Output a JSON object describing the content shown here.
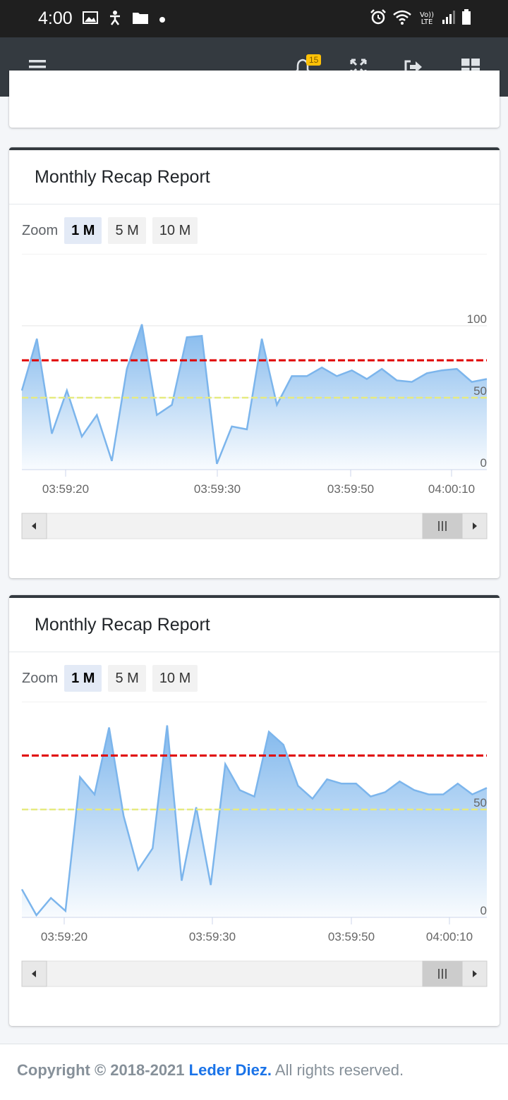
{
  "status_bar": {
    "time": "4:00",
    "lte": "Vo)) LTE"
  },
  "nav": {
    "notification_count": "15",
    "icons": [
      "hamburger-icon",
      "bell-icon",
      "fullscreen-icon",
      "logout-icon",
      "grid-icon"
    ]
  },
  "charts": [
    {
      "title": "Monthly Recap Report",
      "zoom_label": "Zoom",
      "zoom_options": [
        "1 M",
        "5 M",
        "10 M"
      ],
      "active_zoom": "1 M",
      "chart_data": {
        "type": "area",
        "x_ticks": [
          "03:59:20",
          "03:59:30",
          "03:59:50",
          "04:00:10"
        ],
        "y_ticks": [
          "100",
          "50",
          "0"
        ],
        "ylim": [
          0,
          150
        ],
        "values": [
          55,
          91,
          25,
          55,
          23,
          38,
          6,
          70,
          101,
          38,
          45,
          92,
          93,
          4,
          30,
          28,
          91,
          45,
          65,
          65,
          71,
          65,
          69,
          63,
          70,
          62,
          61,
          67,
          69,
          70,
          61,
          63
        ],
        "upper_line": 76,
        "lower_line": 50,
        "grid": true,
        "colors": {
          "area": "#7cb5ec",
          "upper_line": "#e00000",
          "lower_line": "#e6ea80"
        }
      }
    },
    {
      "title": "Monthly Recap Report",
      "zoom_label": "Zoom",
      "zoom_options": [
        "1 M",
        "5 M",
        "10 M"
      ],
      "active_zoom": "1 M",
      "chart_data": {
        "type": "area",
        "x_ticks": [
          "03:59:20",
          "03:59:30",
          "03:59:50",
          "04:00:10"
        ],
        "y_ticks": [
          "50",
          "0"
        ],
        "ylim": [
          0,
          100
        ],
        "values": [
          13,
          1,
          9,
          3,
          65,
          57,
          88,
          47,
          22,
          32,
          89,
          17,
          51,
          15,
          71,
          59,
          56,
          86,
          80,
          61,
          55,
          64,
          62,
          62,
          56,
          58,
          63,
          59,
          57,
          57,
          62,
          57,
          60
        ],
        "upper_line": 75,
        "lower_line": 50,
        "grid": true,
        "colors": {
          "area": "#7cb5ec",
          "upper_line": "#e00000",
          "lower_line": "#e6ea80"
        }
      }
    }
  ],
  "footer": {
    "prefix": "Copyright © 2018-2021 ",
    "brand": "Leder Diez.",
    "suffix": " All rights reserved."
  }
}
